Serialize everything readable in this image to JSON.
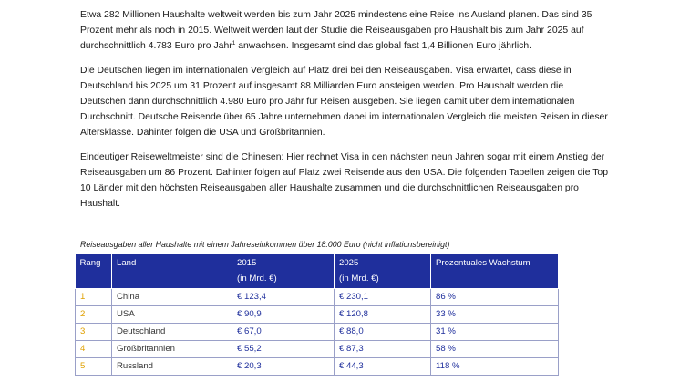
{
  "paragraphs": [
    {
      "before": "Etwa 282 Millionen Haushalte weltweit werden bis zum Jahr 2025 mindestens eine Reise ins Ausland planen. Das sind 35 Prozent mehr als noch in 2015. Weltweit werden laut der Studie die Reiseausgaben pro Haushalt bis zum Jahr 2025 auf durchschnittlich 4.783 Euro pro Jahr",
      "footnote": "1",
      "after": " anwachsen. Insgesamt sind das global fast 1,4 Billionen Euro jährlich."
    },
    {
      "text": "Die Deutschen liegen im internationalen Vergleich auf Platz drei bei den Reiseausgaben. Visa erwartet, dass diese in Deutschland bis 2025 um 31 Prozent auf insgesamt 88 Milliarden Euro ansteigen werden. Pro Haushalt werden die Deutschen dann durchschnittlich 4.980 Euro pro Jahr für Reisen ausgeben. Sie liegen damit über dem internationalen Durchschnitt. Deutsche Reisende über 65 Jahre unternehmen dabei im internationalen Vergleich die meisten Reisen in dieser Altersklasse. Dahinter folgen die USA und Großbritannien."
    },
    {
      "text": "Eindeutiger Reiseweltmeister sind die Chinesen: Hier rechnet Visa in den nächsten neun Jahren sogar mit einem Anstieg der Reiseausgaben um 86 Prozent. Dahinter folgen auf Platz zwei Reisende aus den USA. Die folgenden Tabellen zeigen die Top 10 Länder mit den höchsten Reiseausgaben aller Haushalte zusammen und die durchschnittlichen Reiseausgaben pro Haushalt."
    }
  ],
  "table": {
    "caption": "Reiseausgaben aller Haushalte mit einem Jahreseinkommen über 18.000 Euro (nicht inflationsbereinigt)",
    "headers": [
      {
        "line1": "Rang",
        "line2": ""
      },
      {
        "line1": "Land",
        "line2": ""
      },
      {
        "line1": "2015",
        "line2": "(in Mrd. €)"
      },
      {
        "line1": "2025",
        "line2": "(in Mrd. €)"
      },
      {
        "line1": "Prozentuales Wachstum",
        "line2": ""
      }
    ],
    "rows": [
      {
        "rank": "1",
        "country": "China",
        "v2015": "€ 123,4",
        "v2025": "€ 230,1",
        "growth": "86 %"
      },
      {
        "rank": "2",
        "country": "USA",
        "v2015": "€ 90,9",
        "v2025": "€ 120,8",
        "growth": "33 %"
      },
      {
        "rank": "3",
        "country": "Deutschland",
        "v2015": "€ 67,0",
        "v2025": "€ 88,0",
        "growth": "31 %"
      },
      {
        "rank": "4",
        "country": "Großbritannien",
        "v2015": "€ 55,2",
        "v2025": "€ 87,3",
        "growth": "58 %"
      },
      {
        "rank": "5",
        "country": "Russland",
        "v2015": "€ 20,3",
        "v2025": "€ 44,3",
        "growth": "118 %"
      }
    ]
  },
  "colors": {
    "header_bg": "#1f2f9c",
    "rank_text": "#e0a000",
    "value_text": "#1f2f9c"
  }
}
